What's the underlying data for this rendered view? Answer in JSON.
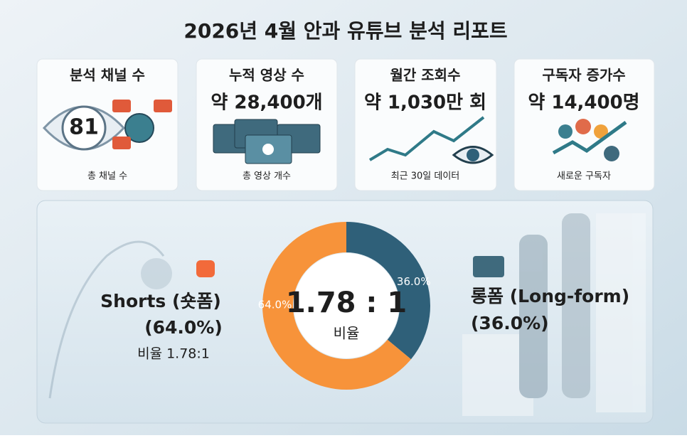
{
  "title": "2026년 4월 안과 유튜브 분석 리포트",
  "cards": [
    {
      "title": "분석 채널 수",
      "value": "81",
      "caption": "총 채널 수"
    },
    {
      "title": "누적 영상 수",
      "value": "약 28,400개",
      "caption": "총 영상 개수"
    },
    {
      "title": "월간 조회수",
      "value": "약 1,030만 회",
      "caption": "최근 30일 데이터"
    },
    {
      "title": "구독자 증가수",
      "value": "약 14,400명",
      "caption": "새로운 구독자"
    }
  ],
  "chart_data": {
    "type": "donut",
    "categories": [
      "롱폼 (Long-form)",
      "Shorts (숏폼)"
    ],
    "values": [
      36.0,
      64.0
    ],
    "value_labels": [
      "36.0%",
      "64.0%"
    ],
    "side_value_labels": [
      "(36.0%)",
      "(64.0%)"
    ],
    "colors": [
      "#2f6079",
      "#f7933a"
    ],
    "center_label": "1.78 : 1",
    "center_caption": "비율",
    "ratio_note": "비율 1.78:1"
  }
}
